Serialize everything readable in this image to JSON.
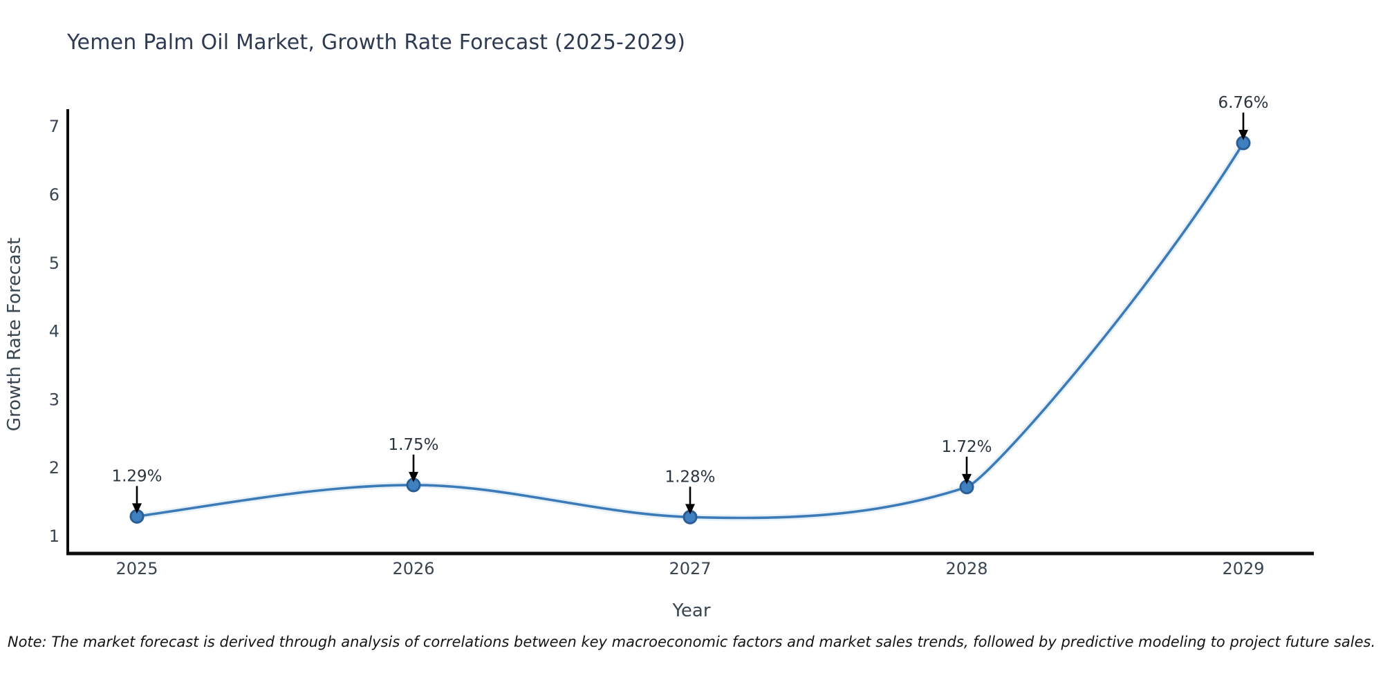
{
  "note": "Note: The market forecast is derived through analysis of correlations between key macroeconomic factors and market sales trends, followed by predictive modeling to project future sales.",
  "chart_data": {
    "type": "line",
    "title": "Yemen Palm Oil Market, Growth Rate Forecast (2025-2029)",
    "xlabel": "Year",
    "ylabel": "Growth Rate Forecast",
    "categories": [
      "2025",
      "2026",
      "2027",
      "2028",
      "2029"
    ],
    "values": [
      1.29,
      1.75,
      1.28,
      1.72,
      6.76
    ],
    "point_labels": [
      "1.29%",
      "1.75%",
      "1.28%",
      "1.72%",
      "6.76%"
    ],
    "yticks": [
      1,
      2,
      3,
      4,
      5,
      6,
      7
    ],
    "ylim": [
      0.76,
      7.25
    ],
    "grid": false,
    "legend": false,
    "marker": "circle",
    "annotation_style": "arrow-down-to-point",
    "colors": {
      "line": "#3d7ab8",
      "halo": "#cfe3f4",
      "marker_fill": "#3e80c0",
      "marker_edge": "#2b5f94",
      "arrow": "#000000",
      "spine": "#0d0d0d",
      "axis_text": "#3a4552",
      "annotation_text": "#2a3440",
      "title_text": "#2e3a52",
      "note_text": "#141414"
    }
  }
}
